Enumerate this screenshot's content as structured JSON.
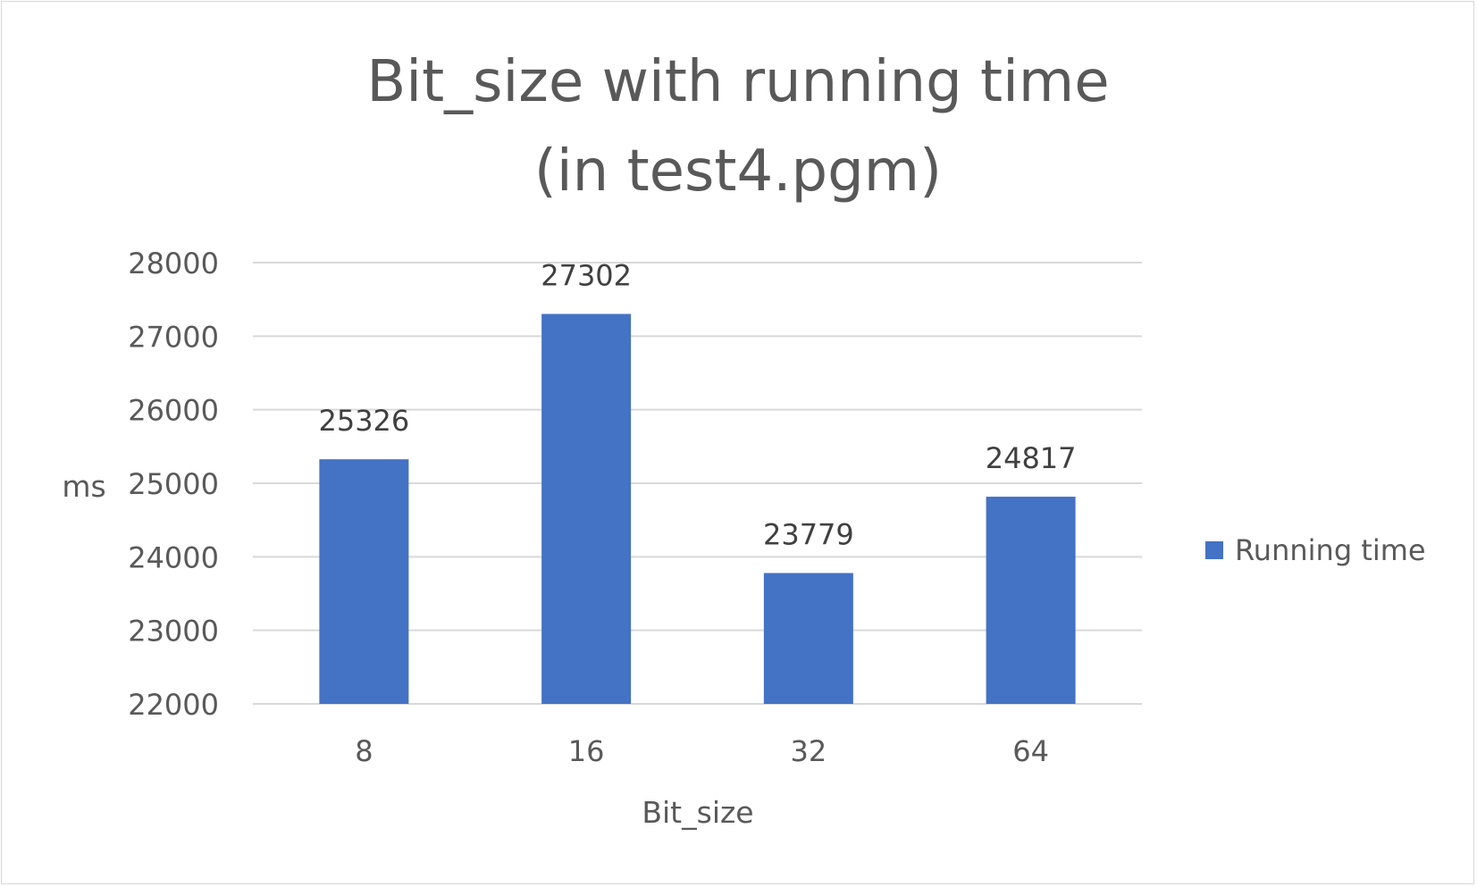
{
  "chart_data": {
    "type": "bar",
    "title_lines": [
      "Bit_size with running time",
      "(in test4.pgm)"
    ],
    "categories": [
      "8",
      "16",
      "32",
      "64"
    ],
    "series": [
      {
        "name": "Running time",
        "values": [
          25326,
          27302,
          23779,
          24817
        ],
        "color": "#4472C4"
      }
    ],
    "xlabel": "Bit_size",
    "ylabel": "ms",
    "ylim": [
      22000,
      28000
    ],
    "yticks": [
      "22000",
      "23000",
      "24000",
      "25000",
      "26000",
      "27000",
      "28000"
    ],
    "grid": true,
    "legend_position": "right"
  }
}
